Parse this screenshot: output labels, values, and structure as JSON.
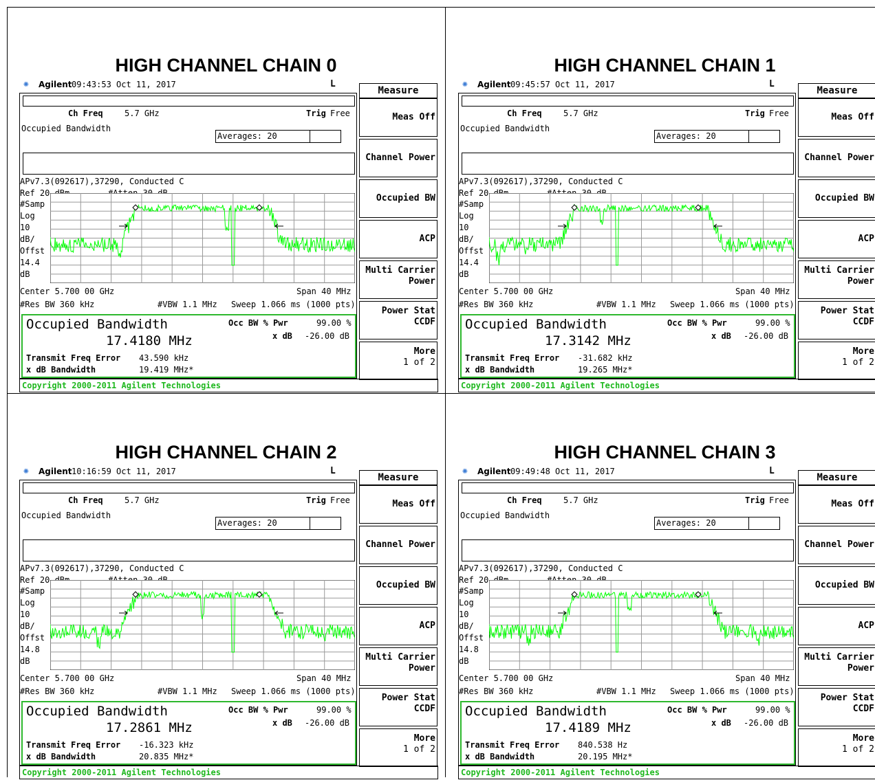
{
  "common": {
    "brand": "Agilent",
    "marker": "L",
    "measure_label": "Measure",
    "softkeys": [
      {
        "l1": "Meas Off",
        "l2": ""
      },
      {
        "l1": "Channel Power",
        "l2": ""
      },
      {
        "l1": "Occupied BW",
        "l2": ""
      },
      {
        "l1": "ACP",
        "l2": ""
      },
      {
        "l1": "Multi Carrier",
        "l2": "Power"
      },
      {
        "l1": "Power Stat",
        "l2": "CCDF"
      },
      {
        "l1": "More",
        "l2": "1 of 2"
      }
    ],
    "ch_freq_label": "Ch Freq",
    "ch_freq_value": "5.7 GHz",
    "trig_label": "Trig",
    "trig_value": "Free",
    "mode_label": "Occupied Bandwidth",
    "averages": "Averages: 20",
    "trace_label": "APv7.3(092617),37290, Conducted C",
    "ref": "Ref 20 dBm",
    "atten": "#Atten 30 dB",
    "left_labels": [
      "#Samp",
      "Log",
      "10",
      "dB/",
      "Offst"
    ],
    "center": "Center 5.700 00 GHz",
    "span": "Span 40 MHz",
    "res_bw": "#Res BW 360 kHz",
    "vbw": "#VBW 1.1 MHz",
    "sweep": "Sweep 1.066 ms (1000 pts)",
    "obw_title": "Occupied Bandwidth",
    "occbw_label": "Occ BW % Pwr",
    "occbw_value": "99.00 %",
    "xdb_label": "x dB",
    "xdb_value": "-26.00 dB",
    "tfe_label": "Transmit Freq Error",
    "xdbbw_label": "x dB Bandwidth",
    "copyright": "Copyright 2000-2011 Agilent Technologies",
    "colors": {
      "trace": "#00ff00",
      "box": "#2db82d",
      "copyright": "#1fb81f",
      "star": "#3a7bd5"
    }
  },
  "panels": [
    {
      "title": "HIGH CHANNEL CHAIN 0",
      "time": "09:43:53  Oct 11, 2017",
      "offset": "14.4",
      "offset_unit": "dB",
      "obw": "17.4180 MHz",
      "tfe": "43.590 kHz",
      "xdbbw": "19.419 MHz*"
    },
    {
      "title": "HIGH CHANNEL CHAIN 1",
      "time": "09:45:57  Oct 11, 2017",
      "offset": "14.4",
      "offset_unit": "dB",
      "obw": "17.3142 MHz",
      "tfe": "-31.682 kHz",
      "xdbbw": "19.265 MHz*"
    },
    {
      "title": "HIGH CHANNEL CHAIN 2",
      "time": "10:16:59  Oct 11, 2017",
      "offset": "14.8",
      "offset_unit": "dB",
      "obw": "17.2861 MHz",
      "tfe": "-16.323 kHz",
      "xdbbw": "20.835 MHz*"
    },
    {
      "title": "HIGH CHANNEL CHAIN 3",
      "time": "09:49:48  Oct 11, 2017",
      "offset": "14.8",
      "offset_unit": "dB",
      "obw": "17.4189 MHz",
      "tfe": "840.538 Hz",
      "xdbbw": "20.195 MHz*"
    }
  ]
}
